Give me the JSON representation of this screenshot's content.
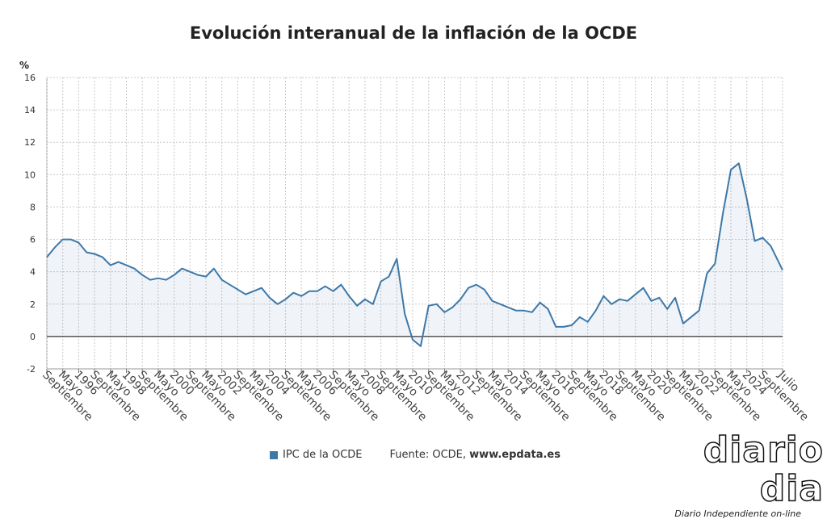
{
  "chart_data": {
    "type": "area",
    "title": "Evolución interanual de la inflación de la OCDE",
    "unit_label": "%",
    "ylim": [
      -2,
      16
    ],
    "yticks": [
      -2,
      0,
      2,
      4,
      6,
      8,
      10,
      12,
      14,
      16
    ],
    "grid": true,
    "x_start": "1994-09",
    "x_end": "2025-07",
    "x_ticks": [
      {
        "date": "1994-09",
        "label": "Septiembre"
      },
      {
        "date": "1995-05",
        "label": "Mayo"
      },
      {
        "date": "1996-01",
        "label": "1996"
      },
      {
        "date": "1996-09",
        "label": "Septiembre"
      },
      {
        "date": "1997-05",
        "label": "Mayo"
      },
      {
        "date": "1998-01",
        "label": "1998"
      },
      {
        "date": "1998-09",
        "label": "Septiembre"
      },
      {
        "date": "1999-05",
        "label": "Mayo"
      },
      {
        "date": "2000-01",
        "label": "2000"
      },
      {
        "date": "2000-09",
        "label": "Septiembre"
      },
      {
        "date": "2001-05",
        "label": "Mayo"
      },
      {
        "date": "2002-01",
        "label": "2002"
      },
      {
        "date": "2002-09",
        "label": "Septiembre"
      },
      {
        "date": "2003-05",
        "label": "Mayo"
      },
      {
        "date": "2004-01",
        "label": "2004"
      },
      {
        "date": "2004-09",
        "label": "Septiembre"
      },
      {
        "date": "2005-05",
        "label": "Mayo"
      },
      {
        "date": "2006-01",
        "label": "2006"
      },
      {
        "date": "2006-09",
        "label": "Septiembre"
      },
      {
        "date": "2007-05",
        "label": "Mayo"
      },
      {
        "date": "2008-01",
        "label": "2008"
      },
      {
        "date": "2008-09",
        "label": "Septiembre"
      },
      {
        "date": "2009-05",
        "label": "Mayo"
      },
      {
        "date": "2010-01",
        "label": "2010"
      },
      {
        "date": "2010-09",
        "label": "Septiembre"
      },
      {
        "date": "2011-05",
        "label": "Mayo"
      },
      {
        "date": "2012-01",
        "label": "2012"
      },
      {
        "date": "2012-09",
        "label": "Septiembre"
      },
      {
        "date": "2013-05",
        "label": "Mayo"
      },
      {
        "date": "2014-01",
        "label": "2014"
      },
      {
        "date": "2014-09",
        "label": "Septiembre"
      },
      {
        "date": "2015-05",
        "label": "Mayo"
      },
      {
        "date": "2016-01",
        "label": "2016"
      },
      {
        "date": "2016-09",
        "label": "Septiembre"
      },
      {
        "date": "2017-05",
        "label": "Mayo"
      },
      {
        "date": "2018-01",
        "label": "2018"
      },
      {
        "date": "2018-09",
        "label": "Septiembre"
      },
      {
        "date": "2019-05",
        "label": "Mayo"
      },
      {
        "date": "2020-01",
        "label": "2020"
      },
      {
        "date": "2020-09",
        "label": "Septiembre"
      },
      {
        "date": "2021-05",
        "label": "Mayo"
      },
      {
        "date": "2022-01",
        "label": "2022"
      },
      {
        "date": "2022-09",
        "label": "Septiembre"
      },
      {
        "date": "2023-05",
        "label": "Mayo"
      },
      {
        "date": "2024-01",
        "label": "2024"
      },
      {
        "date": "2024-09",
        "label": "Septiembre"
      },
      {
        "date": "2025-07",
        "label": "Julio"
      }
    ],
    "series": [
      {
        "name": "IPC de la OCDE",
        "color": "#3d78a8",
        "points": [
          [
            "1994-09",
            4.9
          ],
          [
            "1995-01",
            5.5
          ],
          [
            "1995-05",
            6.0
          ],
          [
            "1995-09",
            6.0
          ],
          [
            "1996-01",
            5.8
          ],
          [
            "1996-05",
            5.2
          ],
          [
            "1996-09",
            5.1
          ],
          [
            "1997-01",
            4.9
          ],
          [
            "1997-05",
            4.4
          ],
          [
            "1997-09",
            4.6
          ],
          [
            "1998-01",
            4.4
          ],
          [
            "1998-05",
            4.2
          ],
          [
            "1998-09",
            3.8
          ],
          [
            "1999-01",
            3.5
          ],
          [
            "1999-05",
            3.6
          ],
          [
            "1999-09",
            3.5
          ],
          [
            "2000-01",
            3.8
          ],
          [
            "2000-05",
            4.2
          ],
          [
            "2000-09",
            4.0
          ],
          [
            "2001-01",
            3.8
          ],
          [
            "2001-05",
            3.7
          ],
          [
            "2001-09",
            4.2
          ],
          [
            "2002-01",
            3.5
          ],
          [
            "2002-05",
            3.2
          ],
          [
            "2002-09",
            2.9
          ],
          [
            "2003-01",
            2.6
          ],
          [
            "2003-05",
            2.8
          ],
          [
            "2003-09",
            3.0
          ],
          [
            "2004-01",
            2.4
          ],
          [
            "2004-05",
            2.0
          ],
          [
            "2004-09",
            2.3
          ],
          [
            "2005-01",
            2.7
          ],
          [
            "2005-05",
            2.5
          ],
          [
            "2005-09",
            2.8
          ],
          [
            "2006-01",
            2.8
          ],
          [
            "2006-05",
            3.1
          ],
          [
            "2006-09",
            2.8
          ],
          [
            "2007-01",
            3.2
          ],
          [
            "2007-05",
            2.5
          ],
          [
            "2007-09",
            1.9
          ],
          [
            "2008-01",
            2.3
          ],
          [
            "2008-05",
            2.0
          ],
          [
            "2008-09",
            3.4
          ],
          [
            "2009-01",
            3.7
          ],
          [
            "2009-05",
            4.8
          ],
          [
            "2009-09",
            1.4
          ],
          [
            "2010-01",
            -0.2
          ],
          [
            "2010-05",
            -0.6
          ],
          [
            "2010-09",
            1.9
          ],
          [
            "2011-01",
            2.0
          ],
          [
            "2011-05",
            1.5
          ],
          [
            "2011-09",
            1.8
          ],
          [
            "2012-01",
            2.3
          ],
          [
            "2012-05",
            3.0
          ],
          [
            "2012-09",
            3.2
          ],
          [
            "2013-01",
            2.9
          ],
          [
            "2013-05",
            2.2
          ],
          [
            "2013-09",
            2.0
          ],
          [
            "2014-01",
            1.8
          ],
          [
            "2014-05",
            1.6
          ],
          [
            "2014-09",
            1.6
          ],
          [
            "2015-01",
            1.5
          ],
          [
            "2015-05",
            2.1
          ],
          [
            "2015-09",
            1.7
          ],
          [
            "2016-01",
            0.6
          ],
          [
            "2016-05",
            0.6
          ],
          [
            "2016-09",
            0.7
          ],
          [
            "2017-01",
            1.2
          ],
          [
            "2017-05",
            0.9
          ],
          [
            "2017-09",
            1.6
          ],
          [
            "2018-01",
            2.5
          ],
          [
            "2018-05",
            2.0
          ],
          [
            "2018-09",
            2.3
          ],
          [
            "2019-01",
            2.2
          ],
          [
            "2019-05",
            2.6
          ],
          [
            "2019-09",
            3.0
          ],
          [
            "2020-01",
            2.2
          ],
          [
            "2020-05",
            2.4
          ],
          [
            "2020-09",
            1.7
          ],
          [
            "2021-01",
            2.4
          ],
          [
            "2021-05",
            0.8
          ],
          [
            "2021-09",
            1.2
          ],
          [
            "2022-01",
            1.6
          ],
          [
            "2022-05",
            3.9
          ],
          [
            "2022-09",
            4.5
          ],
          [
            "2023-01",
            7.6
          ],
          [
            "2023-05",
            10.3
          ],
          [
            "2023-09",
            10.7
          ],
          [
            "2024-01",
            8.5
          ],
          [
            "2024-05",
            5.9
          ],
          [
            "2024-09",
            6.1
          ],
          [
            "2025-01",
            5.6
          ],
          [
            "2025-05",
            4.6
          ],
          [
            "2025-07",
            4.1
          ]
        ]
      }
    ]
  },
  "legend": {
    "series_label": "IPC de la OCDE",
    "source_prefix": "Fuente: OCDE, ",
    "source_link": "www.epdata.es"
  },
  "brand": {
    "logo_text": "diario dia",
    "tagline": "Diario Independiente on-line"
  }
}
